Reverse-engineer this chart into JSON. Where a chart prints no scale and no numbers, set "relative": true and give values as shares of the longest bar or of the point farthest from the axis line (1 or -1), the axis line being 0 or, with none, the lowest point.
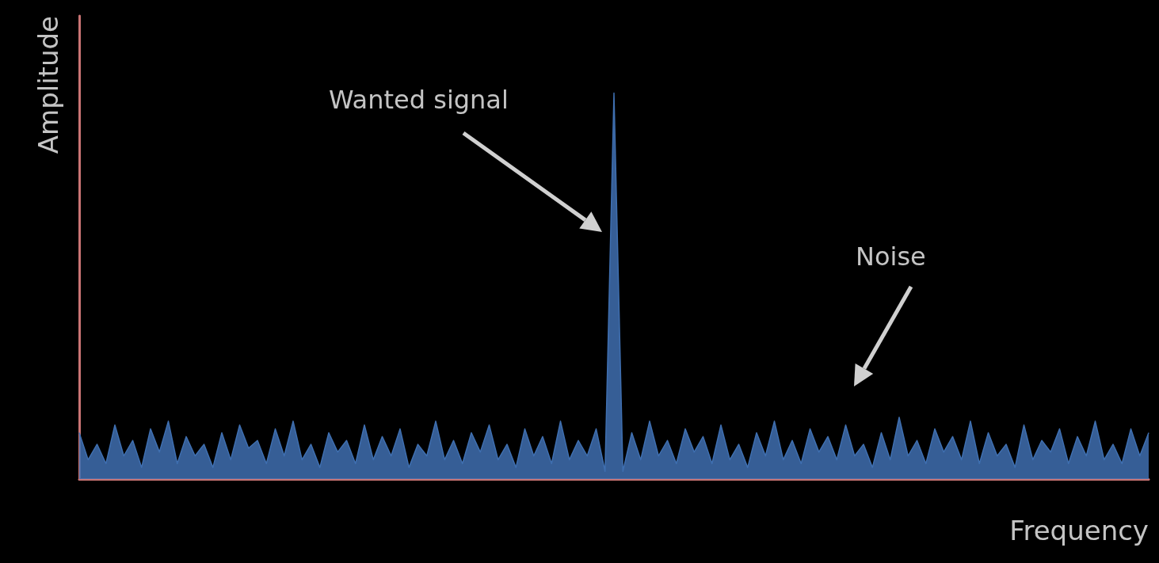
{
  "chart_data": {
    "type": "area",
    "relative": true,
    "xlabel": "Frequency",
    "ylabel": "Amplitude",
    "annotations": [
      "Wanted signal",
      "Noise"
    ],
    "categories": [
      null,
      null,
      null,
      null,
      null,
      null,
      null,
      null,
      null,
      null,
      null,
      null,
      null,
      null,
      null,
      null,
      null,
      null,
      null,
      null,
      null,
      null,
      null,
      null,
      null,
      null,
      null,
      null,
      null,
      null,
      null,
      null,
      null,
      null,
      null,
      null,
      null,
      null,
      null,
      null,
      null,
      null,
      null,
      null,
      null,
      null,
      null,
      null,
      null,
      null,
      null,
      null,
      null,
      null,
      null,
      null,
      null,
      null,
      null,
      null,
      null,
      null,
      null,
      null,
      null,
      null,
      null,
      null,
      null,
      null,
      null,
      null,
      null,
      null,
      null,
      null,
      null,
      null,
      null,
      null,
      null,
      null,
      null,
      null,
      null,
      null,
      null,
      null,
      null,
      null,
      null,
      null,
      null,
      null,
      null,
      null,
      null,
      null,
      null,
      null,
      null,
      null,
      null,
      null,
      null,
      null,
      null,
      null,
      null,
      null,
      null,
      null,
      null,
      null,
      null,
      null,
      null,
      null,
      null,
      null,
      null
    ],
    "series": [
      {
        "color": "#3f6fb0",
        "values": [
          0.12,
          0.05,
          0.09,
          0.04,
          0.14,
          0.06,
          0.1,
          0.03,
          0.13,
          0.07,
          0.15,
          0.04,
          0.11,
          0.06,
          0.09,
          0.03,
          0.12,
          0.05,
          0.14,
          0.08,
          0.1,
          0.04,
          0.13,
          0.06,
          0.15,
          0.05,
          0.09,
          0.03,
          0.12,
          0.07,
          0.1,
          0.04,
          0.14,
          0.05,
          0.11,
          0.06,
          0.13,
          0.03,
          0.09,
          0.06,
          0.15,
          0.05,
          0.1,
          0.04,
          0.12,
          0.07,
          0.14,
          0.05,
          0.09,
          0.03,
          0.13,
          0.06,
          0.11,
          0.04,
          0.15,
          0.05,
          0.1,
          0.06,
          0.13,
          0.02,
          1,
          0.02,
          0.12,
          0.05,
          0.15,
          0.06,
          0.1,
          0.04,
          0.13,
          0.07,
          0.11,
          0.04,
          0.14,
          0.05,
          0.09,
          0.03,
          0.12,
          0.06,
          0.15,
          0.05,
          0.1,
          0.04,
          0.13,
          0.07,
          0.11,
          0.05,
          0.14,
          0.06,
          0.09,
          0.03,
          0.12,
          0.05,
          0.16,
          0.06,
          0.1,
          0.04,
          0.13,
          0.07,
          0.11,
          0.05,
          0.15,
          0.04,
          0.12,
          0.06,
          0.09,
          0.03,
          0.14,
          0.05,
          0.1,
          0.07,
          0.13,
          0.04,
          0.11,
          0.06,
          0.15,
          0.05,
          0.09,
          0.04,
          0.13,
          0.06,
          0.12
        ]
      }
    ],
    "marker": "none"
  }
}
